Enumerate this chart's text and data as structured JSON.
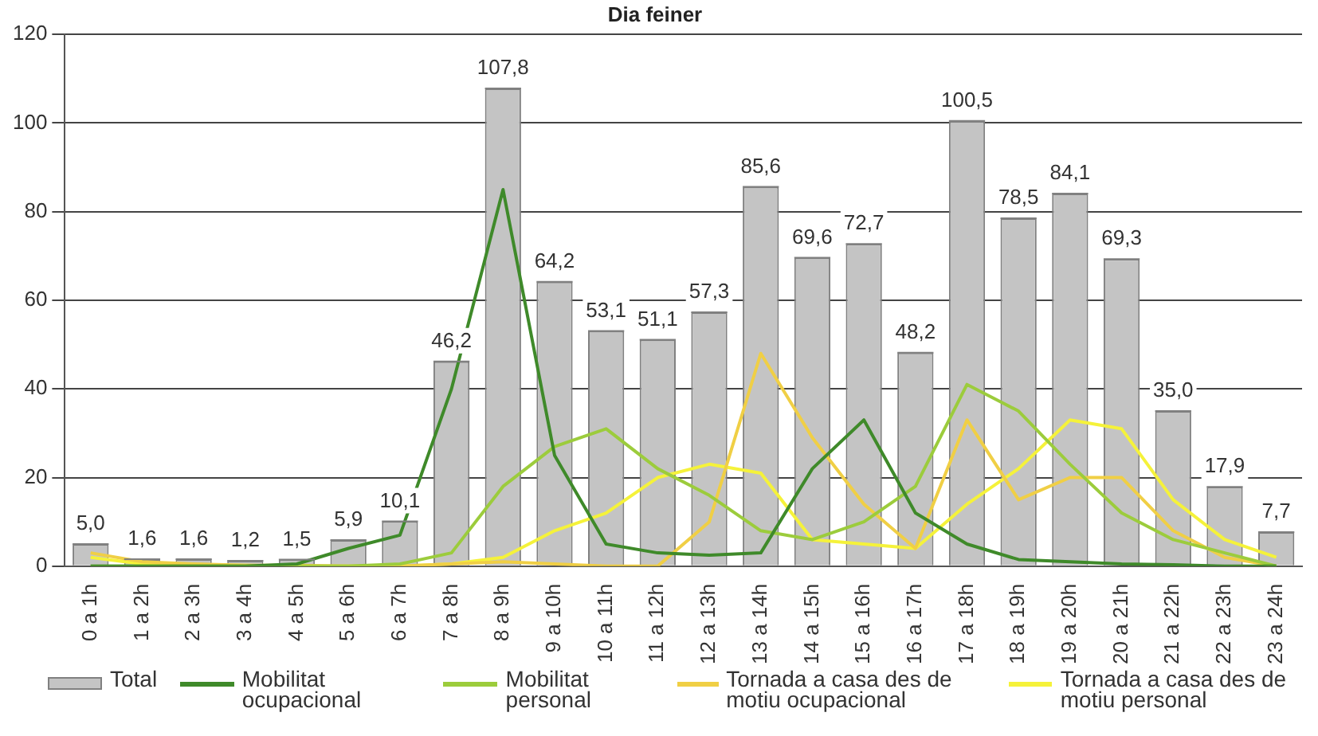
{
  "chart_data": {
    "type": "bar",
    "title": "Dia feiner",
    "categories": [
      "0 a 1h",
      "1 a 2h",
      "2 a 3h",
      "3 a 4h",
      "4 a 5h",
      "5 a 6h",
      "6 a 7h",
      "7 a 8h",
      "8 a 9h",
      "9 a 10h",
      "10 a 11h",
      "11 a 12h",
      "12 a 13h",
      "13 a 14h",
      "14 a 15h",
      "15 a 16h",
      "16 a 17h",
      "17 a 18h",
      "18 a 19h",
      "19 a 20h",
      "20 a 21h",
      "21 a 22h",
      "22 a 23h",
      "23 a 24h"
    ],
    "series": [
      {
        "name": "Total",
        "color": "#c4c4c4",
        "values": [
          5.0,
          1.6,
          1.6,
          1.2,
          1.5,
          5.9,
          10.1,
          46.2,
          107.8,
          64.2,
          53.1,
          51.1,
          57.3,
          85.6,
          69.6,
          72.7,
          48.2,
          100.5,
          78.5,
          84.1,
          69.3,
          35.0,
          17.9,
          7.7
        ],
        "value_labels": [
          "5,0",
          "1,6",
          "1,6",
          "1,2",
          "1,5",
          "5,9",
          "10,1",
          "46,2",
          "107,8",
          "64,2",
          "53,1",
          "51,1",
          "57,3",
          "85,6",
          "69,6",
          "72,7",
          "48,2",
          "100,5",
          "78,5",
          "84,1",
          "69,3",
          "35,0",
          "17,9",
          "7,7"
        ]
      },
      {
        "name": "Mobilitat ocupacional",
        "type": "line",
        "color": "#3f8a2a",
        "values": [
          0,
          0,
          0,
          0,
          0.5,
          4,
          7,
          40,
          85,
          25,
          5,
          3,
          2.5,
          3,
          22,
          33,
          12,
          5,
          1.5,
          1,
          0.5,
          0.3,
          0,
          0
        ]
      },
      {
        "name": "Mobilitat personal",
        "type": "line",
        "color": "#9ccc3c",
        "values": [
          0,
          0,
          0,
          0,
          0,
          0,
          0.5,
          3,
          18,
          27,
          31,
          22,
          16,
          8,
          6,
          10,
          18,
          41,
          35,
          23,
          12,
          6,
          3,
          0
        ]
      },
      {
        "name": "Tornada a casa des de motiu ocupacional",
        "type": "line",
        "color": "#f0cf45",
        "values": [
          3,
          1,
          0.5,
          0.2,
          0.2,
          0,
          0,
          0.5,
          1,
          0.5,
          0,
          0,
          10,
          48,
          29,
          14,
          4,
          33,
          15,
          20,
          20,
          8,
          2,
          0
        ]
      },
      {
        "name": "Tornada a casa des de motiu personal",
        "type": "line",
        "color": "#f5f23a",
        "values": [
          2,
          0.5,
          0.3,
          0.2,
          0,
          0,
          0,
          0.5,
          2,
          8,
          12,
          20,
          23,
          21,
          6,
          5,
          4,
          14,
          22,
          33,
          31,
          15,
          6,
          2
        ]
      }
    ],
    "ylim": [
      0,
      120
    ],
    "yticks": [
      0,
      20,
      40,
      60,
      80,
      100,
      120
    ],
    "grid": "y",
    "legend": "bottom",
    "marker": "none",
    "line_style": "solid"
  }
}
